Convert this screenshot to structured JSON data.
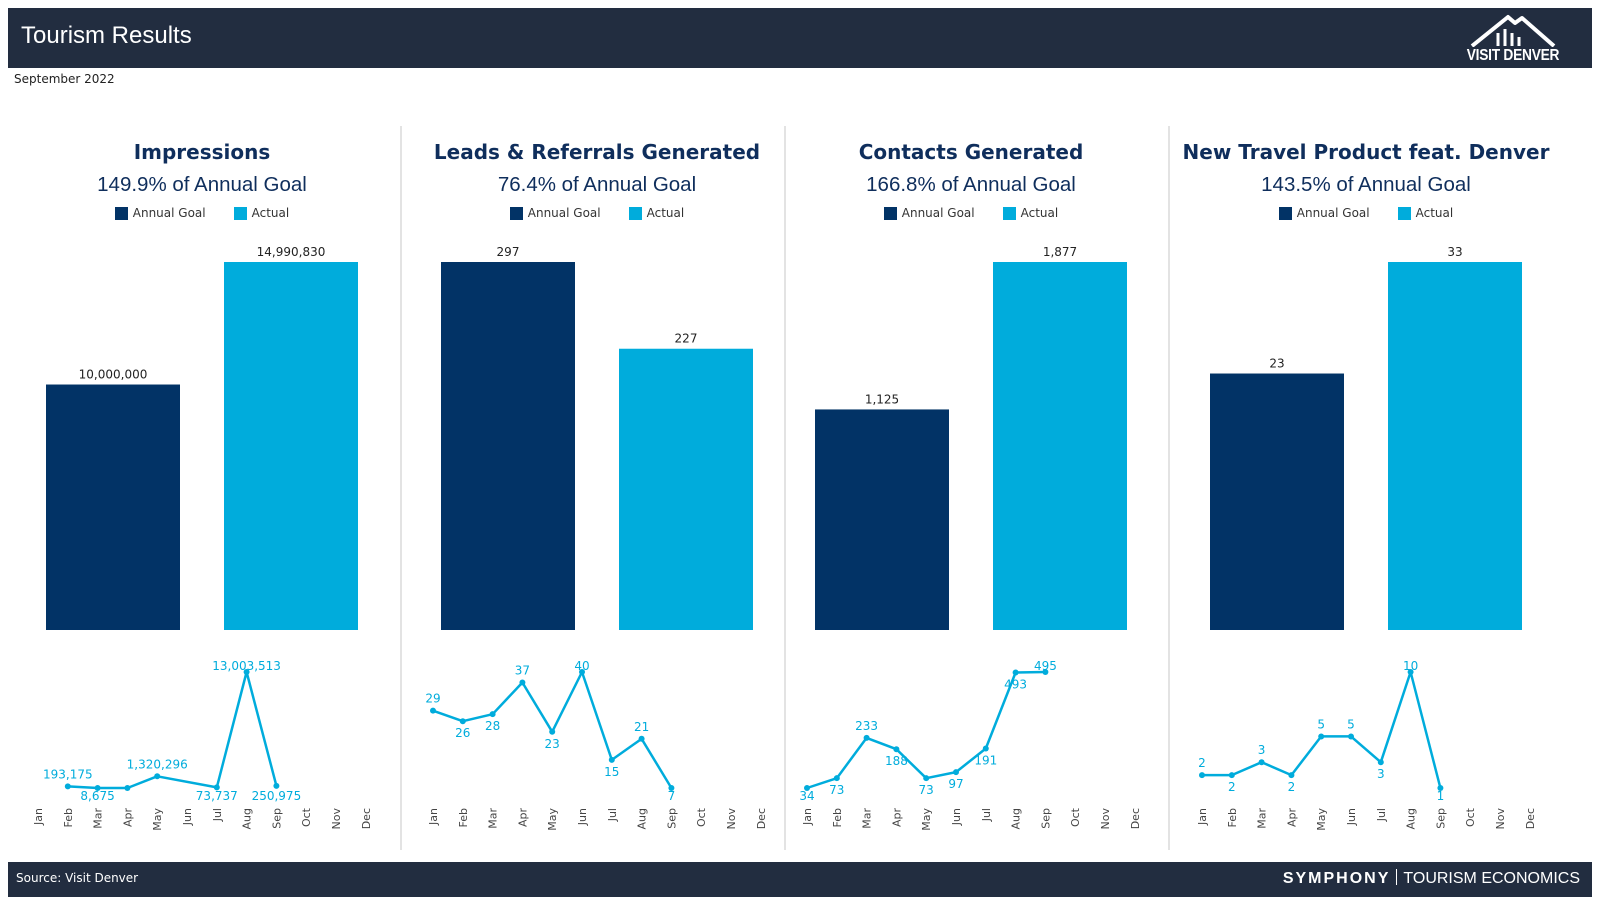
{
  "header": {
    "title": "Tourism Results",
    "logo_text": "VISIT DENVER"
  },
  "subtitle": "September 2022",
  "colors": {
    "header_bg": "#222d40",
    "goal": "#023366",
    "actual": "#00acdc",
    "title": "#0f2e5c"
  },
  "legend": {
    "goal_label": "Annual Goal",
    "actual_label": "Actual"
  },
  "months": [
    "Jan",
    "Feb",
    "Mar",
    "Apr",
    "May",
    "Jun",
    "Jul",
    "Aug",
    "Sep",
    "Oct",
    "Nov",
    "Dec"
  ],
  "footer": {
    "source": "Source: Visit Denver",
    "brand_a": "SYMPHONY",
    "brand_b": "TOURISM ECONOMICS"
  },
  "chart_data": [
    {
      "type": "bar",
      "title": "Impressions",
      "pct_text": "149.9% of Annual Goal",
      "categories": [
        "Annual Goal",
        "Actual"
      ],
      "values": [
        10000000,
        14990830
      ],
      "value_labels": [
        "10,000,000",
        "14,990,830"
      ],
      "trend": {
        "type": "line",
        "values": [
          null,
          193175,
          8675,
          8675,
          1320296,
          null,
          73737,
          13003513,
          250975,
          null,
          null,
          null
        ],
        "labels": [
          "",
          "193,175",
          "8,675",
          "",
          "1,320,296",
          "",
          "73,737",
          "13,003,513",
          "250,975",
          "",
          "",
          ""
        ]
      }
    },
    {
      "type": "bar",
      "title": "Leads & Referrals Generated",
      "pct_text": "76.4% of Annual Goal",
      "categories": [
        "Annual Goal",
        "Actual"
      ],
      "values": [
        297,
        227
      ],
      "value_labels": [
        "297",
        "227"
      ],
      "trend": {
        "type": "line",
        "values": [
          29,
          26,
          28,
          37,
          23,
          40,
          15,
          21,
          7,
          null,
          null,
          null
        ],
        "labels": [
          "29",
          "26",
          "28",
          "37",
          "23",
          "40",
          "15",
          "21",
          "7",
          "",
          "",
          ""
        ]
      }
    },
    {
      "type": "bar",
      "title": "Contacts Generated",
      "pct_text": "166.8% of Annual Goal",
      "categories": [
        "Annual Goal",
        "Actual"
      ],
      "values": [
        1125,
        1877
      ],
      "value_labels": [
        "1,125",
        "1,877"
      ],
      "trend": {
        "type": "line",
        "values": [
          34,
          73,
          233,
          188,
          73,
          97,
          191,
          493,
          495,
          null,
          null,
          null
        ],
        "labels": [
          "34",
          "73",
          "233",
          "188",
          "73",
          "97",
          "191",
          "493",
          "495",
          "",
          "",
          ""
        ]
      }
    },
    {
      "type": "bar",
      "title": "New Travel Product feat. Denver",
      "pct_text": "143.5% of Annual Goal",
      "categories": [
        "Annual Goal",
        "Actual"
      ],
      "values": [
        23,
        33
      ],
      "value_labels": [
        "23",
        "33"
      ],
      "trend": {
        "type": "line",
        "values": [
          2,
          2,
          3,
          2,
          5,
          5,
          3,
          10,
          1,
          null,
          null,
          null
        ],
        "labels": [
          "2",
          "2",
          "3",
          "2",
          "5",
          "5",
          "3",
          "10",
          "1",
          "",
          "",
          ""
        ]
      }
    }
  ]
}
